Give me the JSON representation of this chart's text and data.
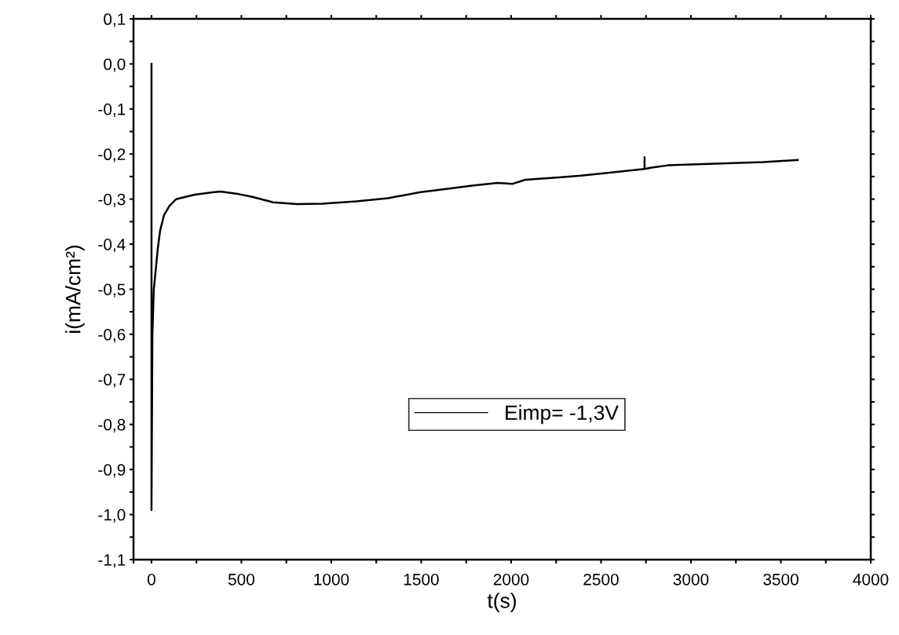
{
  "chart_data": {
    "type": "line",
    "xlabel": "t(s)",
    "ylabel": "i(mA/cm²)",
    "xlim": [
      -100,
      4000
    ],
    "ylim": [
      -1.1,
      0.1
    ],
    "xticks": [
      {
        "value": -100,
        "label": null
      },
      0,
      {
        "value": 250,
        "label": null
      },
      500,
      {
        "value": 750,
        "label": null
      },
      1000,
      {
        "value": 1250,
        "label": null
      },
      1500,
      {
        "value": 1750,
        "label": null
      },
      2000,
      {
        "value": 2250,
        "label": null
      },
      2500,
      {
        "value": 2750,
        "label": null
      },
      3000,
      {
        "value": 3250,
        "label": null
      },
      3500,
      {
        "value": 3750,
        "label": null
      },
      4000
    ],
    "yticks": [
      {
        "value": -1.1,
        "label": "-1,1"
      },
      {
        "value": -1.05,
        "label": null
      },
      {
        "value": -1.0,
        "label": "-1,0"
      },
      {
        "value": -0.95,
        "label": null
      },
      {
        "value": -0.9,
        "label": "-0,9"
      },
      {
        "value": -0.85,
        "label": null
      },
      {
        "value": -0.8,
        "label": "-0,8"
      },
      {
        "value": -0.75,
        "label": null
      },
      {
        "value": -0.7,
        "label": "-0,7"
      },
      {
        "value": -0.65,
        "label": null
      },
      {
        "value": -0.6,
        "label": "-0,6"
      },
      {
        "value": -0.55,
        "label": null
      },
      {
        "value": -0.5,
        "label": "-0,5"
      },
      {
        "value": -0.45,
        "label": null
      },
      {
        "value": -0.4,
        "label": "-0,4"
      },
      {
        "value": -0.35,
        "label": null
      },
      {
        "value": -0.3,
        "label": "-0,3"
      },
      {
        "value": -0.25,
        "label": null
      },
      {
        "value": -0.2,
        "label": "-0,2"
      },
      {
        "value": -0.15,
        "label": null
      },
      {
        "value": -0.1,
        "label": "-0,1"
      },
      {
        "value": -0.05,
        "label": null
      },
      {
        "value": 0.0,
        "label": "0,0"
      },
      {
        "value": 0.05,
        "label": null
      },
      {
        "value": 0.1,
        "label": "0,1"
      }
    ],
    "grid": false,
    "legend": "bottom",
    "marker": "none",
    "line_style": "solid",
    "series": [
      {
        "name": "Eimp= -1,3V",
        "color": "#000000",
        "x": [
          0,
          0,
          5,
          13,
          35,
          48,
          70,
          100,
          137,
          240,
          340,
          384,
          486,
          560,
          676,
          808,
          952,
          1140,
          1315,
          1490,
          1708,
          1782,
          1926,
          2009,
          2079,
          2266,
          2389,
          2742,
          2742,
          2742,
          2782,
          2873,
          3402,
          3594
        ],
        "values": [
          0.0,
          -0.99,
          -0.6,
          -0.5,
          -0.41,
          -0.37,
          -0.335,
          -0.315,
          -0.3,
          -0.29,
          -0.285,
          -0.283,
          -0.289,
          -0.295,
          -0.307,
          -0.311,
          -0.31,
          -0.305,
          -0.298,
          -0.285,
          -0.274,
          -0.27,
          -0.264,
          -0.266,
          -0.257,
          -0.252,
          -0.248,
          -0.233,
          -0.207,
          -0.233,
          -0.23,
          -0.225,
          -0.218,
          -0.213
        ]
      }
    ]
  }
}
